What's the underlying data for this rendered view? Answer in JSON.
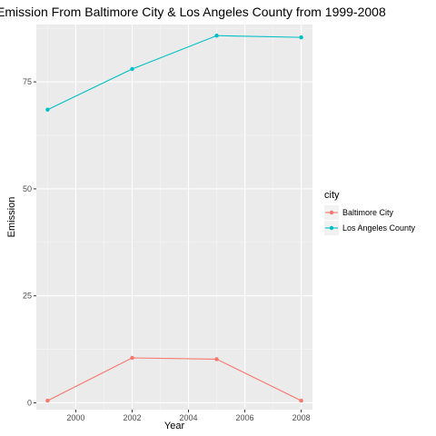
{
  "chart_data": {
    "type": "line",
    "title": "Emission From Baltimore City & Los Angeles County from 1999-2008",
    "xlabel": "Year",
    "ylabel": "Emission",
    "xlim": [
      1998.6,
      2008.4
    ],
    "ylim": [
      -1.6,
      88.4
    ],
    "x_ticks": [
      2000,
      2002,
      2004,
      2006,
      2008
    ],
    "y_ticks": [
      0,
      25,
      50,
      75
    ],
    "grid": true,
    "legend": {
      "title": "city",
      "position": "right"
    },
    "series": [
      {
        "name": "Baltimore City",
        "color": "#F8766D",
        "x": [
          1999,
          2002,
          2005,
          2008
        ],
        "y": [
          0.5,
          10.5,
          10.2,
          0.5
        ]
      },
      {
        "name": "Los Angeles County",
        "color": "#00BFC4",
        "x": [
          1999,
          2002,
          2005,
          2008
        ],
        "y": [
          68.5,
          78.0,
          85.8,
          85.4
        ]
      }
    ]
  }
}
